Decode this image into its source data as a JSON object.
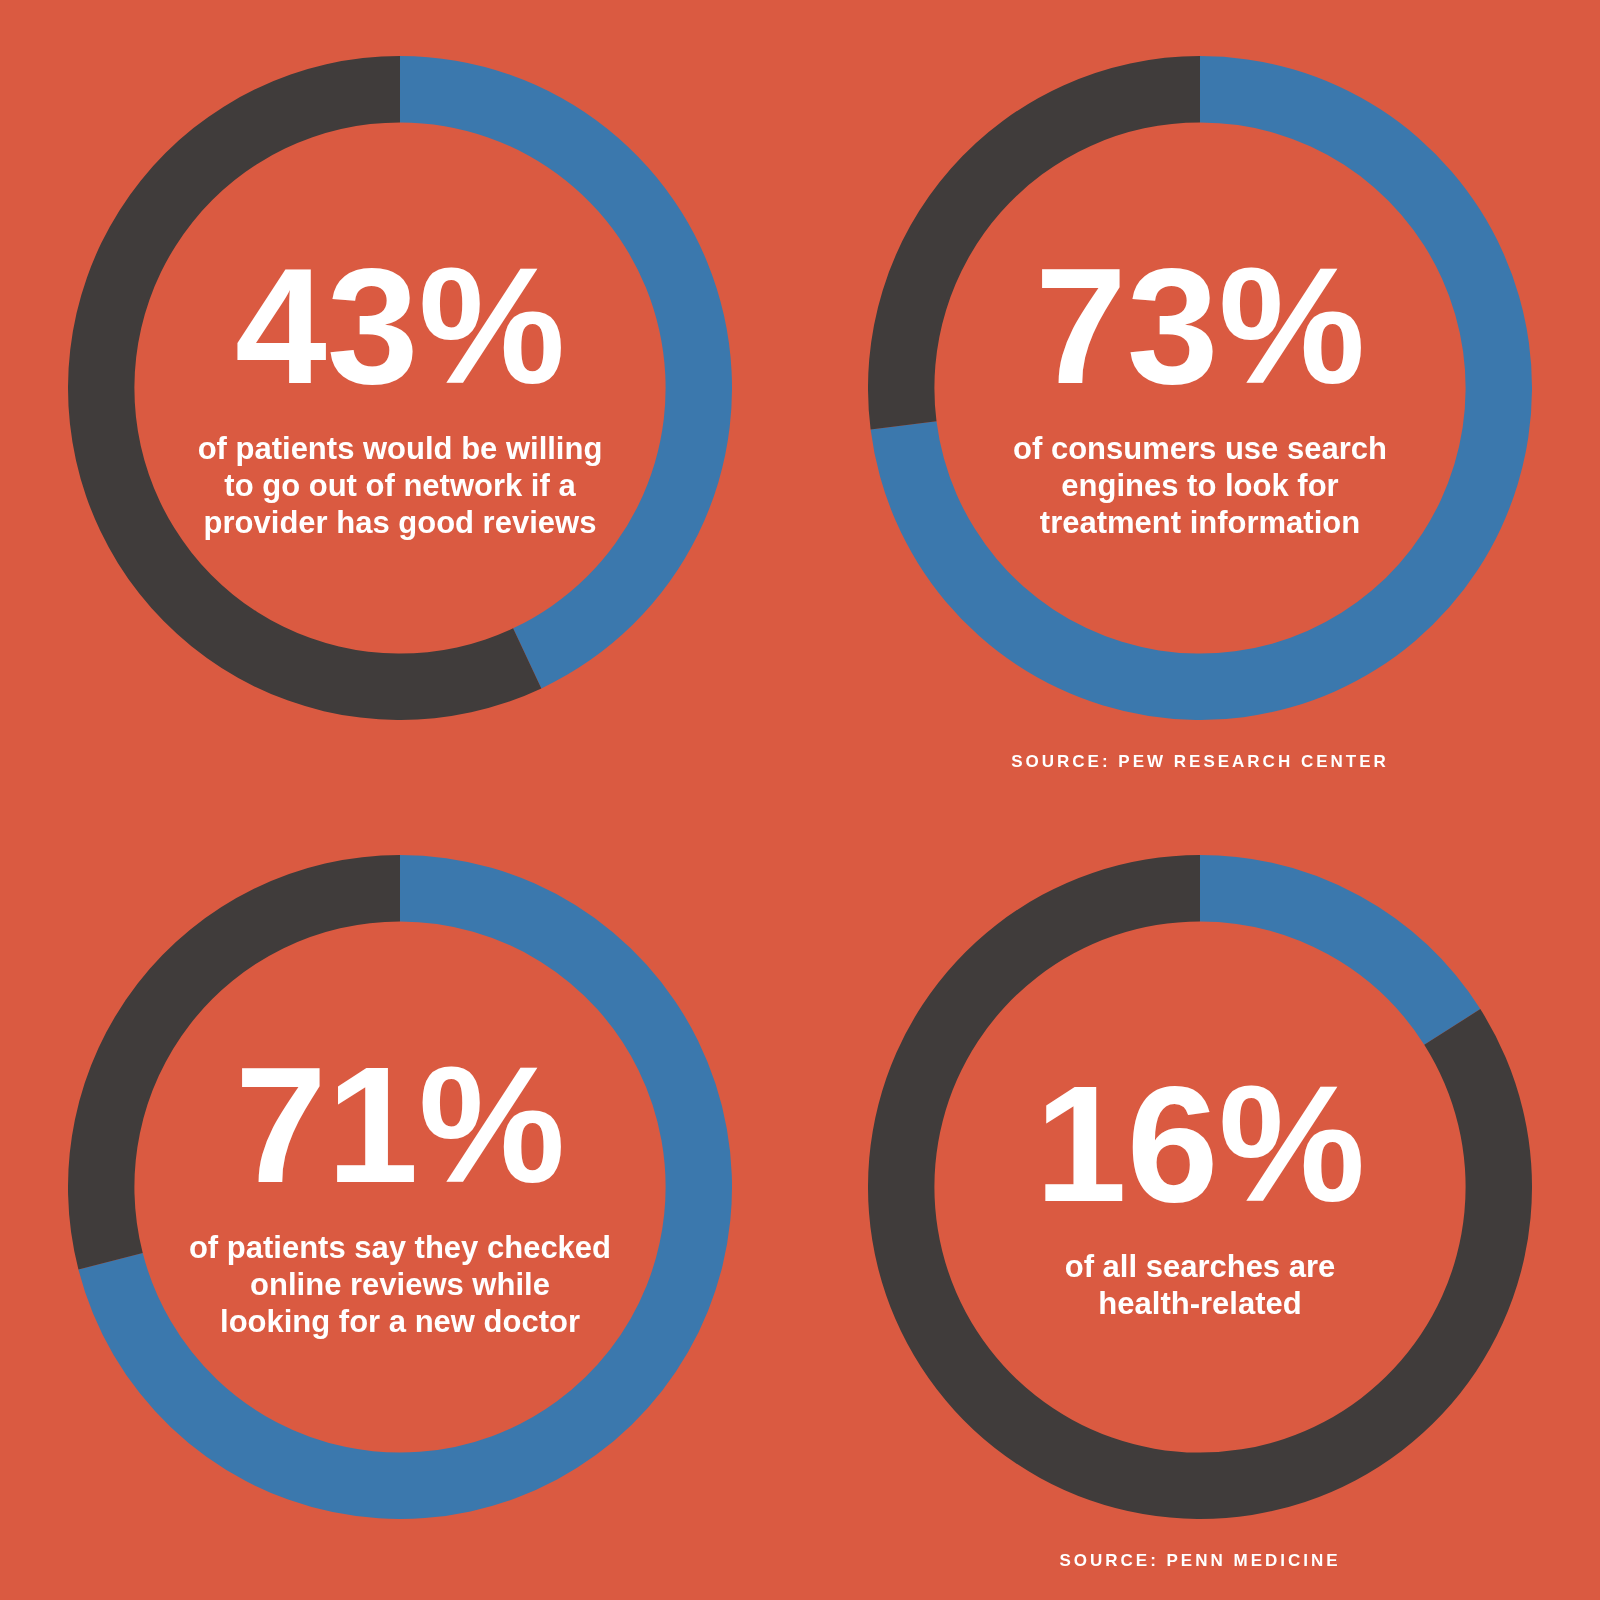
{
  "chart_data": [
    {
      "type": "donut",
      "categories": [
        null,
        null
      ],
      "values": [
        43,
        57
      ],
      "colors": [
        "#3b78ad",
        "#403c3b"
      ],
      "value_labels": [
        "43%",
        null
      ],
      "subtitle": "of patients would be willing\nto go out of network if a\nprovider has good reviews"
    },
    {
      "type": "donut",
      "categories": [
        null,
        null
      ],
      "values": [
        73,
        27
      ],
      "colors": [
        "#3b78ad",
        "#403c3b"
      ],
      "value_labels": [
        "73%",
        null
      ],
      "subtitle": "of consumers use search\nengines to look for\ntreatment information",
      "annotations": [
        "SOURCE: PEW RESEARCH CENTER"
      ]
    },
    {
      "type": "donut",
      "categories": [
        null,
        null
      ],
      "values": [
        71,
        29
      ],
      "colors": [
        "#3b78ad",
        "#403c3b"
      ],
      "value_labels": [
        "71%",
        null
      ],
      "subtitle": "of patients say they checked\nonline reviews while\nlooking for a new doctor"
    },
    {
      "type": "donut",
      "categories": [
        null,
        null
      ],
      "values": [
        16,
        84
      ],
      "colors": [
        "#3b78ad",
        "#403c3b"
      ],
      "value_labels": [
        "16%",
        null
      ],
      "subtitle": "of all searches are\nhealth-related",
      "annotations": [
        "SOURCE: PENN MEDICINE"
      ]
    }
  ]
}
